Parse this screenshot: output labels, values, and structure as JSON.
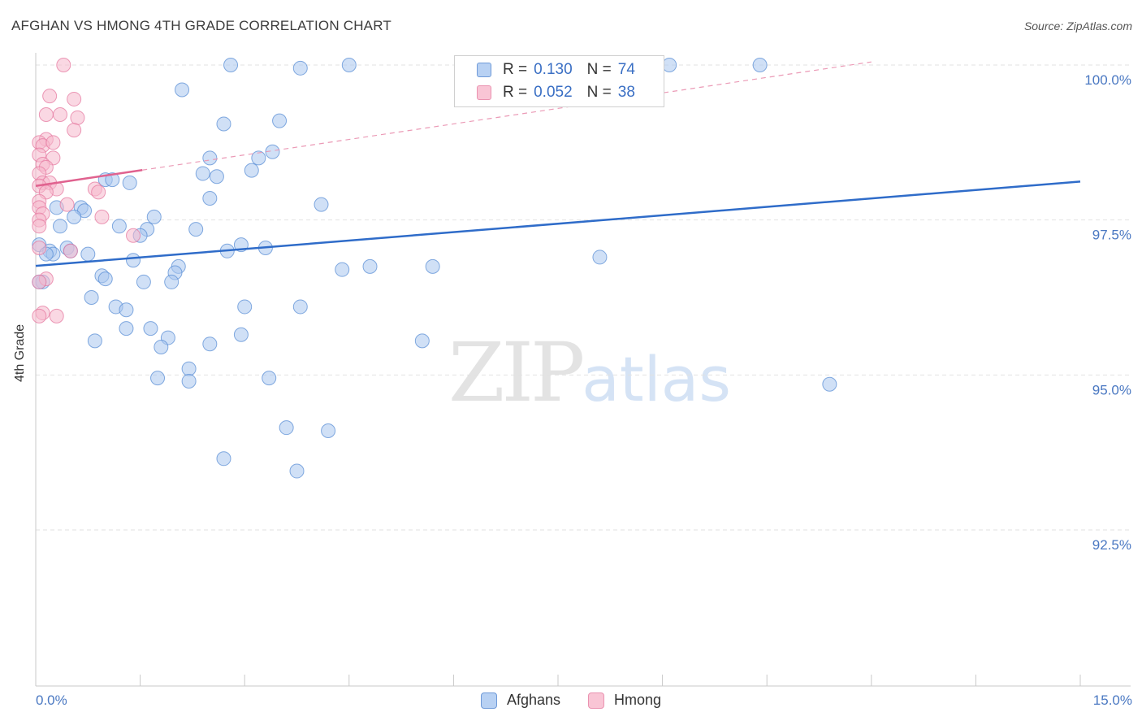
{
  "chart_data": {
    "type": "scatter",
    "title": "AFGHAN VS HMONG 4TH GRADE CORRELATION CHART",
    "source": "Source: ZipAtlas.com",
    "ylabel": "4th Grade",
    "xlabel": "",
    "xlim": [
      0,
      15
    ],
    "ylim": [
      90,
      100.4
    ],
    "x_tick_labels": {
      "min": "0.0%",
      "max": "15.0%"
    },
    "y_ticks": [
      {
        "value": 100,
        "label": "100.0%"
      },
      {
        "value": 97.5,
        "label": "97.5%"
      },
      {
        "value": 95,
        "label": "95.0%"
      },
      {
        "value": 92.5,
        "label": "92.5%"
      }
    ],
    "watermark": {
      "zip": "ZIP",
      "atlas": "atlas"
    },
    "series": [
      {
        "name": "Afghans",
        "color": "#5b8fd6",
        "fill": "#a9c6ef",
        "R": "0.130",
        "N": "74",
        "trend": {
          "x0": 0,
          "y0": 96.76,
          "x1": 15,
          "y1": 98.12
        },
        "points": [
          [
            2.8,
            100.0
          ],
          [
            3.8,
            99.95
          ],
          [
            4.5,
            100.0
          ],
          [
            9.1,
            100.0
          ],
          [
            10.4,
            100.0
          ],
          [
            2.1,
            99.6
          ],
          [
            2.7,
            99.05
          ],
          [
            3.5,
            99.1
          ],
          [
            3.4,
            98.6
          ],
          [
            3.2,
            98.5
          ],
          [
            2.5,
            98.5
          ],
          [
            3.1,
            98.3
          ],
          [
            2.4,
            98.25
          ],
          [
            2.6,
            98.2
          ],
          [
            1.0,
            98.15
          ],
          [
            1.1,
            98.15
          ],
          [
            1.35,
            98.1
          ],
          [
            2.5,
            97.85
          ],
          [
            4.1,
            97.75
          ],
          [
            0.3,
            97.7
          ],
          [
            0.65,
            97.7
          ],
          [
            0.7,
            97.65
          ],
          [
            0.55,
            97.55
          ],
          [
            1.7,
            97.55
          ],
          [
            1.2,
            97.4
          ],
          [
            0.35,
            97.4
          ],
          [
            1.6,
            97.35
          ],
          [
            2.3,
            97.35
          ],
          [
            1.5,
            97.25
          ],
          [
            0.05,
            97.1
          ],
          [
            0.2,
            97.0
          ],
          [
            0.45,
            97.05
          ],
          [
            0.5,
            97.0
          ],
          [
            0.25,
            96.95
          ],
          [
            0.15,
            96.95
          ],
          [
            0.75,
            96.95
          ],
          [
            2.95,
            97.1
          ],
          [
            3.3,
            97.05
          ],
          [
            2.75,
            97.0
          ],
          [
            1.4,
            96.85
          ],
          [
            2.05,
            96.75
          ],
          [
            2.0,
            96.65
          ],
          [
            4.4,
            96.7
          ],
          [
            4.8,
            96.75
          ],
          [
            5.7,
            96.75
          ],
          [
            8.1,
            96.9
          ],
          [
            0.95,
            96.6
          ],
          [
            1.0,
            96.55
          ],
          [
            1.55,
            96.5
          ],
          [
            1.95,
            96.5
          ],
          [
            0.1,
            96.5
          ],
          [
            0.8,
            96.25
          ],
          [
            1.15,
            96.1
          ],
          [
            1.3,
            96.05
          ],
          [
            3.0,
            96.1
          ],
          [
            3.8,
            96.1
          ],
          [
            1.3,
            95.75
          ],
          [
            1.65,
            95.75
          ],
          [
            2.95,
            95.65
          ],
          [
            1.9,
            95.6
          ],
          [
            0.85,
            95.55
          ],
          [
            5.55,
            95.55
          ],
          [
            2.5,
            95.5
          ],
          [
            1.8,
            95.45
          ],
          [
            2.2,
            95.1
          ],
          [
            3.35,
            94.95
          ],
          [
            1.75,
            94.95
          ],
          [
            2.2,
            94.9
          ],
          [
            11.4,
            94.85
          ],
          [
            3.6,
            94.15
          ],
          [
            4.2,
            94.1
          ],
          [
            2.7,
            93.65
          ],
          [
            3.75,
            93.45
          ],
          [
            0.05,
            96.5
          ]
        ]
      },
      {
        "name": "Hmong",
        "color": "#e67aa0",
        "fill": "#f5b8cc",
        "R": "0.052",
        "N": "38",
        "trend": {
          "x0": 0,
          "y0": 98.05,
          "x1": 12,
          "y1": 100.05,
          "solid_until": 1.53
        },
        "points": [
          [
            0.4,
            100.0
          ],
          [
            0.2,
            99.5
          ],
          [
            0.55,
            99.45
          ],
          [
            0.15,
            99.2
          ],
          [
            0.35,
            99.2
          ],
          [
            0.6,
            99.15
          ],
          [
            0.55,
            98.95
          ],
          [
            0.15,
            98.8
          ],
          [
            0.05,
            98.75
          ],
          [
            0.1,
            98.7
          ],
          [
            0.25,
            98.75
          ],
          [
            0.05,
            98.55
          ],
          [
            0.25,
            98.5
          ],
          [
            0.1,
            98.4
          ],
          [
            0.15,
            98.35
          ],
          [
            0.05,
            98.25
          ],
          [
            0.1,
            98.1
          ],
          [
            0.2,
            98.1
          ],
          [
            0.05,
            98.05
          ],
          [
            0.3,
            98.0
          ],
          [
            0.85,
            98.0
          ],
          [
            0.15,
            97.95
          ],
          [
            0.9,
            97.95
          ],
          [
            0.05,
            97.8
          ],
          [
            0.45,
            97.75
          ],
          [
            0.05,
            97.7
          ],
          [
            0.1,
            97.6
          ],
          [
            0.05,
            97.5
          ],
          [
            0.95,
            97.55
          ],
          [
            1.4,
            97.25
          ],
          [
            0.05,
            97.05
          ],
          [
            0.5,
            97.0
          ],
          [
            0.15,
            96.55
          ],
          [
            0.05,
            96.5
          ],
          [
            0.1,
            96.0
          ],
          [
            0.05,
            95.95
          ],
          [
            0.3,
            95.95
          ],
          [
            0.05,
            97.4
          ]
        ]
      }
    ]
  }
}
